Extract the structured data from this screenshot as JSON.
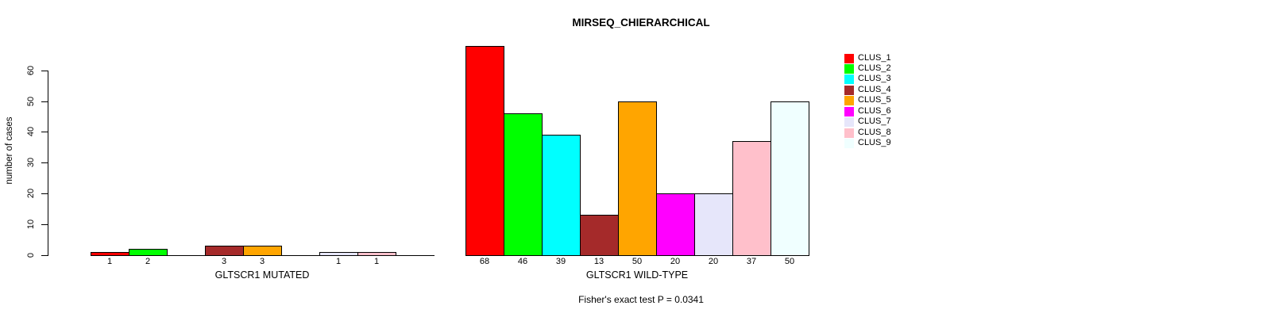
{
  "title": "MIRSEQ_CHIERARCHICAL",
  "footer": "Fisher's exact test P = 0.0341",
  "y_axis": {
    "label": "number of cases",
    "ticks": [
      "0",
      "10",
      "20",
      "30",
      "40",
      "50",
      "60"
    ],
    "tick_values": [
      0,
      10,
      20,
      30,
      40,
      50,
      60
    ],
    "range": [
      0,
      60
    ]
  },
  "legend": {
    "items": [
      {
        "label": "CLUS_1",
        "color": "#FF0000"
      },
      {
        "label": "CLUS_2",
        "color": "#00FF00"
      },
      {
        "label": "CLUS_3",
        "color": "#00FFFF"
      },
      {
        "label": "CLUS_4",
        "color": "#A52A2A"
      },
      {
        "label": "CLUS_5",
        "color": "#FFA500"
      },
      {
        "label": "CLUS_6",
        "color": "#FF00FF"
      },
      {
        "label": "CLUS_7",
        "color": "#E6E6FA"
      },
      {
        "label": "CLUS_8",
        "color": "#FFC0CB"
      },
      {
        "label": "CLUS_9",
        "color": "#F0FFFF"
      }
    ]
  },
  "chart_data": [
    {
      "type": "bar",
      "panel": "GLTSCR1 MUTATED",
      "xlabel": "GLTSCR1 MUTATED",
      "ylabel": "number of cases",
      "ylim": [
        0,
        60
      ],
      "grid": false,
      "categories": [
        "CLUS_1",
        "CLUS_2",
        "CLUS_3",
        "CLUS_4",
        "CLUS_5",
        "CLUS_6",
        "CLUS_7",
        "CLUS_8",
        "CLUS_9"
      ],
      "values": [
        1,
        2,
        0,
        3,
        3,
        0,
        1,
        1,
        0
      ],
      "bar_labels": [
        "1",
        "2",
        "",
        "3",
        "3",
        "",
        "1",
        "1",
        ""
      ],
      "colors": [
        "#FF0000",
        "#00FF00",
        "#00FFFF",
        "#A52A2A",
        "#FFA500",
        "#FF00FF",
        "#E6E6FA",
        "#FFC0CB",
        "#F0FFFF"
      ]
    },
    {
      "type": "bar",
      "panel": "GLTSCR1 WILD-TYPE",
      "xlabel": "GLTSCR1 WILD-TYPE",
      "ylabel": "number of cases",
      "ylim": [
        0,
        60
      ],
      "grid": false,
      "categories": [
        "CLUS_1",
        "CLUS_2",
        "CLUS_3",
        "CLUS_4",
        "CLUS_5",
        "CLUS_6",
        "CLUS_7",
        "CLUS_8",
        "CLUS_9"
      ],
      "values": [
        68,
        46,
        39,
        13,
        50,
        20,
        20,
        37,
        50
      ],
      "bar_labels": [
        "68",
        "46",
        "39",
        "13",
        "50",
        "20",
        "20",
        "37",
        "50"
      ],
      "colors": [
        "#FF0000",
        "#00FF00",
        "#00FFFF",
        "#A52A2A",
        "#FFA500",
        "#FF00FF",
        "#E6E6FA",
        "#FFC0CB",
        "#F0FFFF"
      ]
    }
  ]
}
